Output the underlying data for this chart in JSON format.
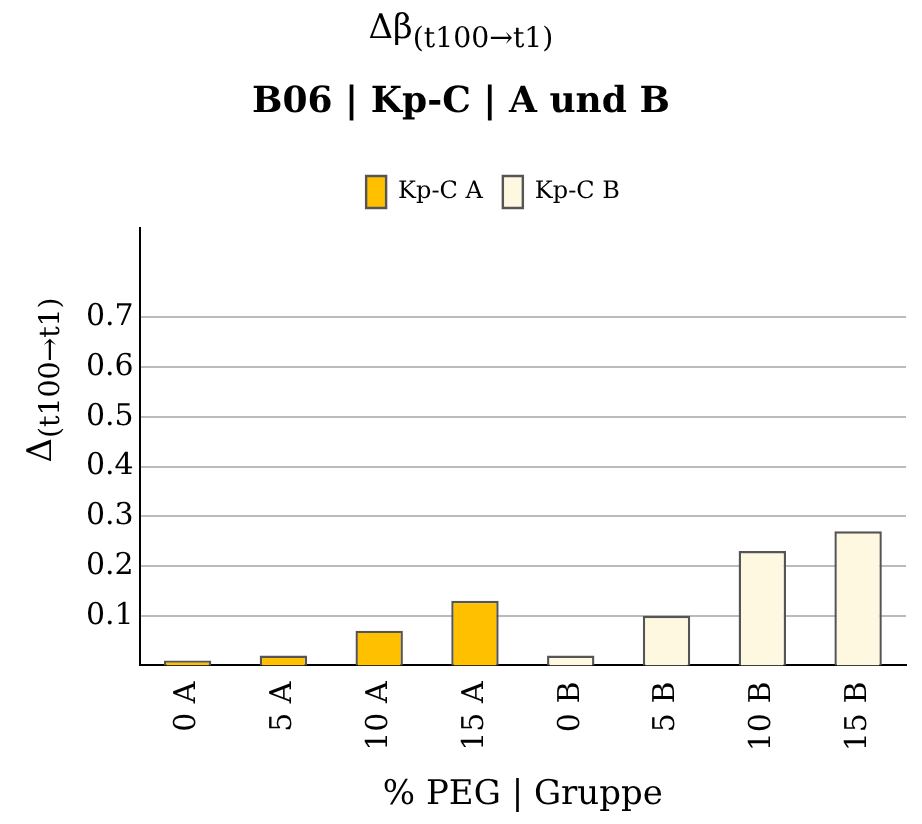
{
  "chart_data": {
    "type": "bar",
    "title": "Δβ$_{(t100→t1)}$",
    "subtitle": "B06 | Kp-C | A und B",
    "xlabel": "% PEG | Gruppe",
    "ylabel": "Δ$_{(t100→t1)}$",
    "categories": [
      "0 A",
      "5 A",
      "10 A",
      "15 A",
      "0 B",
      "5 B",
      "10 B",
      "15 B"
    ],
    "series": [
      {
        "name": "Kp-C A",
        "color": "#ffc000",
        "values": [
          0.01,
          0.02,
          0.07,
          0.13,
          null,
          null,
          null,
          null
        ]
      },
      {
        "name": "Kp-C B",
        "color": "#fff8e1",
        "values": [
          null,
          null,
          null,
          null,
          0.02,
          0.1,
          0.23,
          0.27
        ]
      }
    ],
    "ylim": [
      0,
      0.88
    ],
    "yticks": [
      0.1,
      0.2,
      0.3,
      0.4,
      0.5,
      0.6,
      0.7
    ],
    "grid": "y",
    "legend": "top"
  }
}
